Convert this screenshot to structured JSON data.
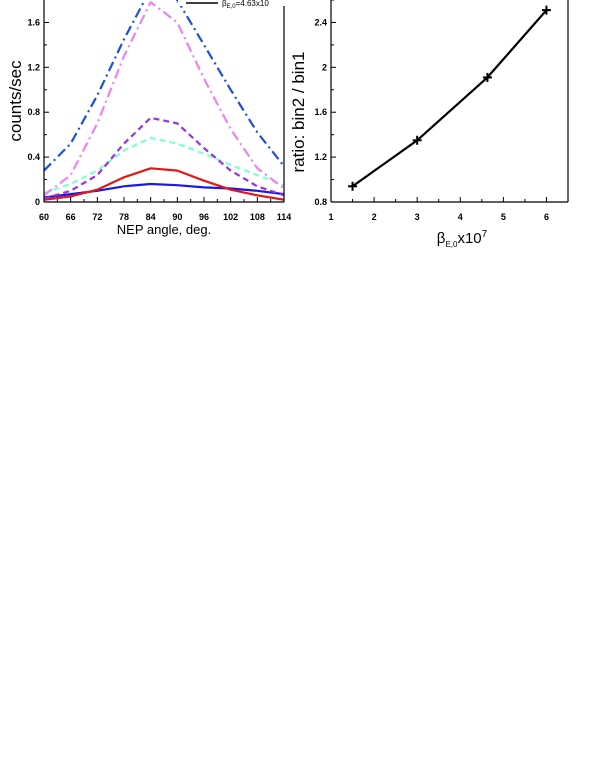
{
  "chart_data": [
    {
      "type": "line",
      "xlabel": "NEP angle, deg.",
      "ylabel": "counts/sec",
      "xlim": [
        60,
        114
      ],
      "ylim": [
        0,
        1.8
      ],
      "xticks": [
        "60",
        "66",
        "72",
        "78",
        "84",
        "90",
        "96",
        "102",
        "108",
        "114"
      ],
      "yticks": [
        "0",
        "0.4",
        "0.8",
        "1.2",
        "1.6"
      ],
      "legend": {
        "placement": "top-right",
        "visible_entry": "β",
        "visible_entry_sub": "E,0",
        "visible_entry_value": "=4.63x10"
      },
      "series": [
        {
          "color": "#1a1adf",
          "dash": "solid",
          "x": [
            60,
            66,
            72,
            78,
            84,
            90,
            96,
            102,
            108,
            114
          ],
          "y": [
            0.04,
            0.07,
            0.1,
            0.14,
            0.16,
            0.15,
            0.13,
            0.12,
            0.1,
            0.07
          ]
        },
        {
          "color": "#e01818",
          "dash": "solid",
          "x": [
            60,
            66,
            72,
            78,
            84,
            90,
            96,
            102,
            108,
            114
          ],
          "y": [
            0.02,
            0.05,
            0.11,
            0.22,
            0.3,
            0.28,
            0.19,
            0.11,
            0.06,
            0.02
          ]
        },
        {
          "color": "#7fffd4",
          "dash": "dash",
          "x": [
            60,
            66,
            72,
            78,
            84,
            90,
            96,
            102,
            108,
            114
          ],
          "y": [
            0.08,
            0.16,
            0.28,
            0.46,
            0.57,
            0.52,
            0.43,
            0.33,
            0.24,
            0.15
          ]
        },
        {
          "color": "#9b30e6",
          "dash": "dash",
          "x": [
            60,
            66,
            72,
            78,
            84,
            90,
            96,
            102,
            108,
            114
          ],
          "y": [
            0.03,
            0.1,
            0.24,
            0.52,
            0.75,
            0.7,
            0.48,
            0.28,
            0.14,
            0.06
          ]
        },
        {
          "color": "#ee82ee",
          "dash": "dashdot",
          "x": [
            60,
            66,
            72,
            78,
            84,
            90,
            96,
            102,
            108,
            114
          ],
          "y": [
            0.06,
            0.24,
            0.7,
            1.3,
            1.78,
            1.6,
            1.1,
            0.65,
            0.3,
            0.12
          ]
        },
        {
          "color": "#1c4fe0",
          "dash": "dashdot",
          "x": [
            60,
            66,
            72,
            78,
            84,
            90,
            96,
            102,
            108,
            114
          ],
          "y": [
            0.28,
            0.52,
            0.95,
            1.45,
            1.9,
            1.8,
            1.4,
            1.0,
            0.62,
            0.32
          ]
        }
      ]
    },
    {
      "type": "line",
      "xlabel": "β",
      "xlabel_sub": "E,0",
      "xlabel_suffix": "x10",
      "xlabel_sup": "7",
      "ylabel": "ratio: bin2 / bin1",
      "xlim": [
        1,
        6.5
      ],
      "ylim": [
        0.8,
        2.6
      ],
      "xticks": [
        "1",
        "2",
        "3",
        "4",
        "5",
        "6"
      ],
      "yticks": [
        "0.8",
        "1.2",
        "1.6",
        "2",
        "2.4"
      ],
      "series": [
        {
          "color": "#000000",
          "marker": "plus",
          "x": [
            1.5,
            3.0,
            4.63,
            6.0
          ],
          "y": [
            0.94,
            1.35,
            1.91,
            2.51
          ]
        }
      ]
    }
  ]
}
